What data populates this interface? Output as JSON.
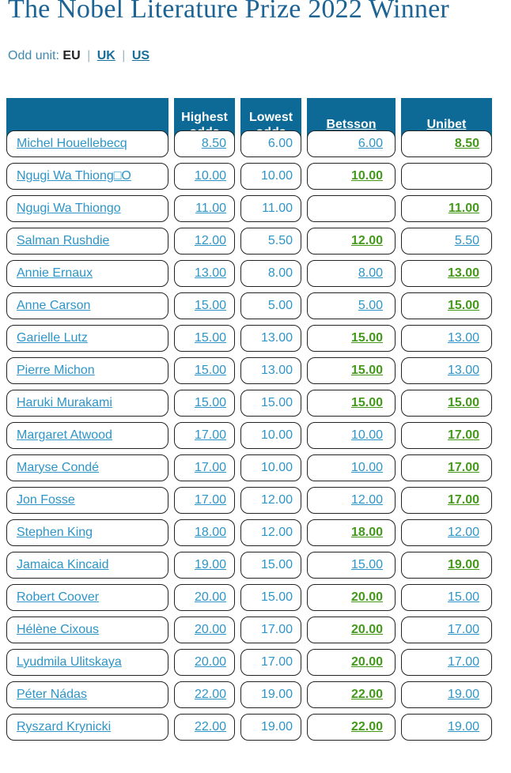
{
  "page": {
    "title": "The Nobel Literature Prize 2022 Winner"
  },
  "odd_unit": {
    "label": "Odd unit:",
    "separator": "|",
    "active": "EU",
    "links": [
      "UK",
      "US"
    ]
  },
  "colors": {
    "header_background": "#0d6a96",
    "title_blue": "#1d6394",
    "link_blue": "#2e95c8",
    "best_odds_green": "#44991b",
    "cell_border": "#222222"
  },
  "table": {
    "headers": {
      "name": "",
      "highest": "Highest odds",
      "lowest": "Lowest odds",
      "betsson": "Betsson",
      "unibet": "Unibet"
    },
    "rows": [
      {
        "name": "Michel Houellebecq",
        "highest": "8.50",
        "lowest": "6.00",
        "betsson": {
          "value": "6.00",
          "best": false
        },
        "unibet": {
          "value": "8.50",
          "best": true
        }
      },
      {
        "name": "Ngugi Wa Thiong□O",
        "highest": "10.00",
        "lowest": "10.00",
        "betsson": {
          "value": "10.00",
          "best": true
        },
        "unibet": {
          "value": "",
          "best": false
        }
      },
      {
        "name": "Ngugi Wa Thiongo",
        "highest": "11.00",
        "lowest": "11.00",
        "betsson": {
          "value": "",
          "best": false
        },
        "unibet": {
          "value": "11.00",
          "best": true
        }
      },
      {
        "name": "Salman Rushdie",
        "highest": "12.00",
        "lowest": "5.50",
        "betsson": {
          "value": "12.00",
          "best": true
        },
        "unibet": {
          "value": "5.50",
          "best": false
        }
      },
      {
        "name": "Annie Ernaux",
        "highest": "13.00",
        "lowest": "8.00",
        "betsson": {
          "value": "8.00",
          "best": false
        },
        "unibet": {
          "value": "13.00",
          "best": true
        }
      },
      {
        "name": "Anne Carson",
        "highest": "15.00",
        "lowest": "5.00",
        "betsson": {
          "value": "5.00",
          "best": false
        },
        "unibet": {
          "value": "15.00",
          "best": true
        }
      },
      {
        "name": "Garielle Lutz",
        "highest": "15.00",
        "lowest": "13.00",
        "betsson": {
          "value": "15.00",
          "best": true
        },
        "unibet": {
          "value": "13.00",
          "best": false
        }
      },
      {
        "name": "Pierre Michon",
        "highest": "15.00",
        "lowest": "13.00",
        "betsson": {
          "value": "15.00",
          "best": true
        },
        "unibet": {
          "value": "13.00",
          "best": false
        }
      },
      {
        "name": "Haruki Murakami",
        "highest": "15.00",
        "lowest": "15.00",
        "betsson": {
          "value": "15.00",
          "best": true
        },
        "unibet": {
          "value": "15.00",
          "best": true
        }
      },
      {
        "name": "Margaret Atwood",
        "highest": "17.00",
        "lowest": "10.00",
        "betsson": {
          "value": "10.00",
          "best": false
        },
        "unibet": {
          "value": "17.00",
          "best": true
        }
      },
      {
        "name": "Maryse Condé",
        "highest": "17.00",
        "lowest": "10.00",
        "betsson": {
          "value": "10.00",
          "best": false
        },
        "unibet": {
          "value": "17.00",
          "best": true
        }
      },
      {
        "name": "Jon Fosse",
        "highest": "17.00",
        "lowest": "12.00",
        "betsson": {
          "value": "12.00",
          "best": false
        },
        "unibet": {
          "value": "17.00",
          "best": true
        }
      },
      {
        "name": "Stephen King",
        "highest": "18.00",
        "lowest": "12.00",
        "betsson": {
          "value": "18.00",
          "best": true
        },
        "unibet": {
          "value": "12.00",
          "best": false
        }
      },
      {
        "name": "Jamaica Kincaid",
        "highest": "19.00",
        "lowest": "15.00",
        "betsson": {
          "value": "15.00",
          "best": false
        },
        "unibet": {
          "value": "19.00",
          "best": true
        }
      },
      {
        "name": "Robert Coover",
        "highest": "20.00",
        "lowest": "15.00",
        "betsson": {
          "value": "20.00",
          "best": true
        },
        "unibet": {
          "value": "15.00",
          "best": false
        }
      },
      {
        "name": "Hélène Cixous",
        "highest": "20.00",
        "lowest": "17.00",
        "betsson": {
          "value": "20.00",
          "best": true
        },
        "unibet": {
          "value": "17.00",
          "best": false
        }
      },
      {
        "name": "Lyudmila Ulitskaya",
        "highest": "20.00",
        "lowest": "17.00",
        "betsson": {
          "value": "20.00",
          "best": true
        },
        "unibet": {
          "value": "17.00",
          "best": false
        }
      },
      {
        "name": "Péter Nádas",
        "highest": "22.00",
        "lowest": "19.00",
        "betsson": {
          "value": "22.00",
          "best": true
        },
        "unibet": {
          "value": "19.00",
          "best": false
        }
      },
      {
        "name": "Ryszard Krynicki",
        "highest": "22.00",
        "lowest": "19.00",
        "betsson": {
          "value": "22.00",
          "best": true
        },
        "unibet": {
          "value": "19.00",
          "best": false
        }
      }
    ]
  }
}
